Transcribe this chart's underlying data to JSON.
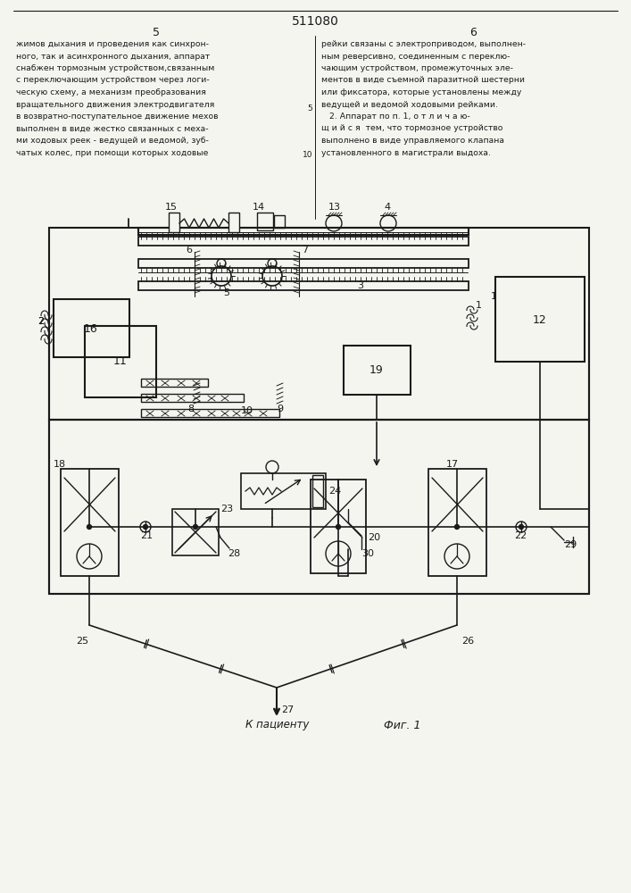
{
  "title": "511080",
  "fig_label": "Фиг. 1",
  "to_patient": "К пациенту",
  "col1_text": [
    "жимов дыхания и проведения как синхрон-",
    "ного, так и асинхронного дыхания, аппарат",
    "снабжен тормозным устройством,связанным",
    "с переключающим устройством через логи-",
    "ческую схему, а механизм преобразования",
    "вращательного движения электродвигателя",
    "в возвратно-поступательное движение мехов",
    "выполнен в виде жестко связанных с меха-",
    "ми ходовых реек - ведущей и ведомой, зуб-",
    "чатых колес, при помощи которых ходовые"
  ],
  "col2_text": [
    "рейки связаны с электроприводом, выполнен-",
    "ным реверсивно, соединенным с переклю-",
    "чающим устройством, промежуточных эле-",
    "ментов в виде съемной паразитной шестерни",
    "или фиксатора, которые установлены между",
    "ведущей и ведомой ходовыми рейками.",
    "   2. Аппарат по п. 1, о т л и ч а ю-",
    "щ и й с я  тем, что тормозное устройство",
    "выполнено в виде управляемого клапана",
    "установленного в магистрали выдоха."
  ],
  "line5_label": "5",
  "line6_label": "6",
  "line5_note": "5",
  "line6_note": "6 10",
  "bg_color": "#f5f5f0",
  "lc": "#1a1a1a"
}
